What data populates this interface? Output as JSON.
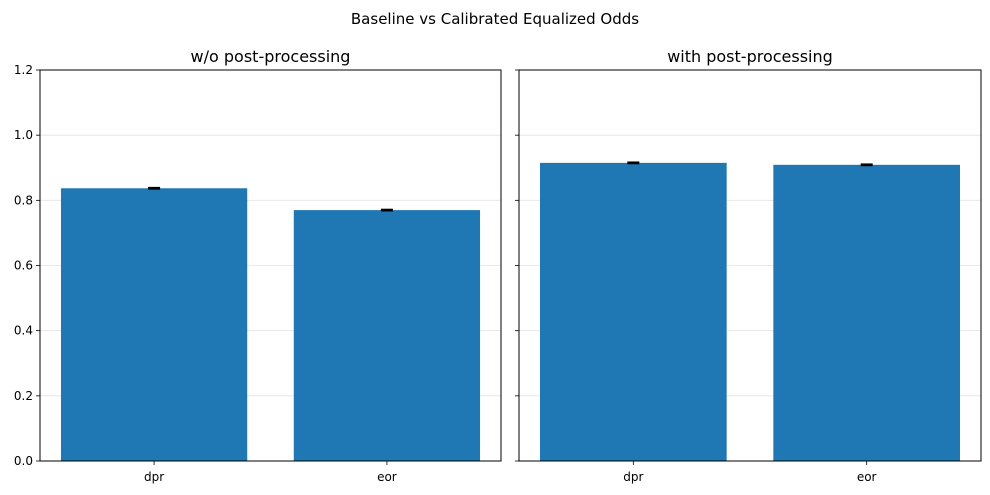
{
  "figure_title": "Baseline vs Calibrated Equalized Odds",
  "colors": {
    "bar": "#1f77b4",
    "error_bar": "#000000"
  },
  "chart_data": [
    {
      "type": "bar",
      "title": "w/o post-processing",
      "categories": [
        "dpr",
        "eor"
      ],
      "values": [
        0.837,
        0.77
      ],
      "error": [
        0.002,
        0.002
      ],
      "xlabel": "",
      "ylabel": "",
      "ylim": [
        0,
        1.2
      ],
      "yticks": [
        "0.0",
        "0.2",
        "0.4",
        "0.6",
        "0.8",
        "1.0",
        "1.2"
      ],
      "ytick_values": [
        0,
        0.2,
        0.4,
        0.6,
        0.8,
        1.0,
        1.2
      ],
      "show_ytick_labels": true,
      "grid": "y"
    },
    {
      "type": "bar",
      "title": "with post-processing",
      "categories": [
        "dpr",
        "eor"
      ],
      "values": [
        0.915,
        0.909
      ],
      "error": [
        0.002,
        0.002
      ],
      "xlabel": "",
      "ylabel": "",
      "ylim": [
        0,
        1.2
      ],
      "yticks": [
        "0.0",
        "0.2",
        "0.4",
        "0.6",
        "0.8",
        "1.0",
        "1.2"
      ],
      "ytick_values": [
        0,
        0.2,
        0.4,
        0.6,
        0.8,
        1.0,
        1.2
      ],
      "show_ytick_labels": false,
      "grid": "y"
    }
  ]
}
